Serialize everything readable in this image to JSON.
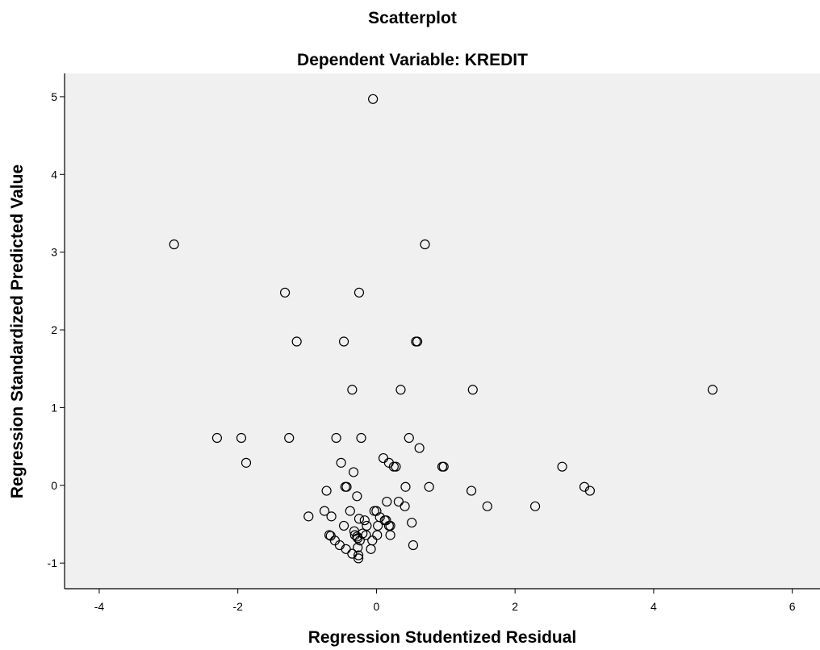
{
  "chart_data": {
    "type": "scatter",
    "title": "Scatterplot",
    "subtitle": "Dependent Variable: KREDIT",
    "xlabel": "Regression Studentized Residual",
    "ylabel": "Regression Standardized Predicted Value",
    "xlim": [
      -4.5,
      6.4
    ],
    "ylim": [
      -1.33,
      5.3
    ],
    "xticks": [
      -4,
      -2,
      0,
      2,
      4,
      6
    ],
    "yticks": [
      -1,
      0,
      1,
      2,
      3,
      4,
      5
    ],
    "grid": false,
    "legend": "none",
    "colors": {
      "plot_background": "#f0f0f0",
      "marker_edge": "#000000",
      "axis": "#000000"
    },
    "points": [
      [
        -0.05,
        4.97
      ],
      [
        -2.92,
        3.1
      ],
      [
        0.7,
        3.1
      ],
      [
        -1.32,
        2.48
      ],
      [
        -0.25,
        2.48
      ],
      [
        -1.15,
        1.85
      ],
      [
        -0.47,
        1.85
      ],
      [
        0.57,
        1.85
      ],
      [
        0.59,
        1.85
      ],
      [
        -0.35,
        1.23
      ],
      [
        0.35,
        1.23
      ],
      [
        1.39,
        1.23
      ],
      [
        4.85,
        1.23
      ],
      [
        -2.3,
        0.61
      ],
      [
        -1.95,
        0.61
      ],
      [
        -1.26,
        0.61
      ],
      [
        -0.58,
        0.61
      ],
      [
        -0.22,
        0.61
      ],
      [
        0.47,
        0.61
      ],
      [
        0.62,
        0.48
      ],
      [
        0.1,
        0.35
      ],
      [
        0.18,
        0.29
      ],
      [
        -0.51,
        0.29
      ],
      [
        -1.88,
        0.29
      ],
      [
        0.25,
        0.24
      ],
      [
        0.28,
        0.24
      ],
      [
        0.95,
        0.24
      ],
      [
        0.97,
        0.24
      ],
      [
        2.68,
        0.24
      ],
      [
        -0.33,
        0.17
      ],
      [
        -0.45,
        -0.02
      ],
      [
        -0.43,
        -0.02
      ],
      [
        0.42,
        -0.02
      ],
      [
        0.76,
        -0.02
      ],
      [
        3.0,
        -0.02
      ],
      [
        -0.72,
        -0.07
      ],
      [
        1.37,
        -0.07
      ],
      [
        3.08,
        -0.07
      ],
      [
        -0.28,
        -0.14
      ],
      [
        0.15,
        -0.21
      ],
      [
        0.32,
        -0.21
      ],
      [
        0.41,
        -0.27
      ],
      [
        1.6,
        -0.27
      ],
      [
        2.29,
        -0.27
      ],
      [
        -0.75,
        -0.33
      ],
      [
        -0.38,
        -0.33
      ],
      [
        -0.03,
        -0.33
      ],
      [
        0.0,
        -0.33
      ],
      [
        -0.98,
        -0.4
      ],
      [
        -0.65,
        -0.4
      ],
      [
        -0.25,
        -0.43
      ],
      [
        -0.17,
        -0.45
      ],
      [
        0.05,
        -0.41
      ],
      [
        0.12,
        -0.45
      ],
      [
        0.14,
        -0.45
      ],
      [
        0.02,
        -0.52
      ],
      [
        -0.14,
        -0.52
      ],
      [
        -0.47,
        -0.52
      ],
      [
        0.18,
        -0.52
      ],
      [
        0.2,
        -0.52
      ],
      [
        0.51,
        -0.48
      ],
      [
        -0.32,
        -0.59
      ],
      [
        -0.2,
        -0.62
      ],
      [
        -0.15,
        -0.64
      ],
      [
        0.01,
        -0.64
      ],
      [
        0.2,
        -0.64
      ],
      [
        -0.68,
        -0.64
      ],
      [
        -0.66,
        -0.65
      ],
      [
        -0.31,
        -0.64
      ],
      [
        -0.28,
        -0.66
      ],
      [
        -0.27,
        -0.68
      ],
      [
        -0.6,
        -0.71
      ],
      [
        -0.24,
        -0.71
      ],
      [
        -0.06,
        -0.71
      ],
      [
        0.53,
        -0.77
      ],
      [
        -0.53,
        -0.77
      ],
      [
        -0.44,
        -0.82
      ],
      [
        -0.27,
        -0.8
      ],
      [
        -0.08,
        -0.82
      ],
      [
        -0.35,
        -0.88
      ],
      [
        -0.26,
        -0.9
      ],
      [
        -0.26,
        -0.94
      ]
    ]
  }
}
